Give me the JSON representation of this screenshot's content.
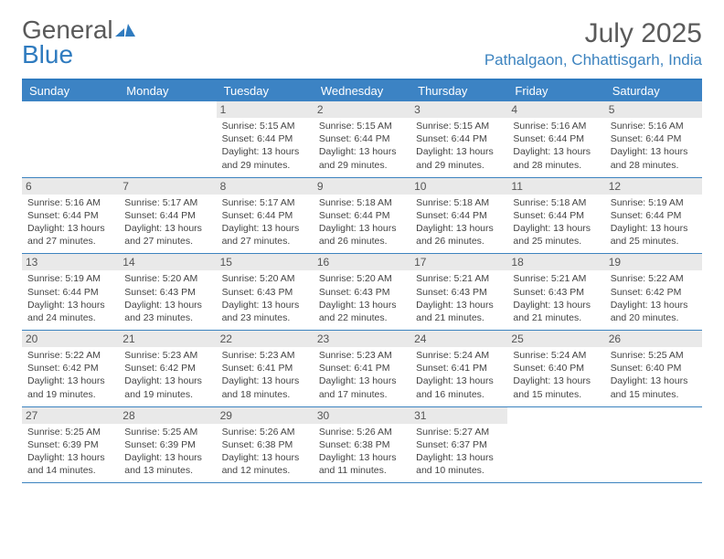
{
  "logo": {
    "part1": "General",
    "part2": "Blue"
  },
  "title": "July 2025",
  "location": "Pathalgaon, Chhattisgarh, India",
  "colors": {
    "header_bg": "#3c83c4",
    "border": "#2f7bbf",
    "daynum_bg": "#e9e9e9",
    "text": "#444444",
    "title_text": "#5a5a5a",
    "location_text": "#3c83bf"
  },
  "day_headers": [
    "Sunday",
    "Monday",
    "Tuesday",
    "Wednesday",
    "Thursday",
    "Friday",
    "Saturday"
  ],
  "weeks": [
    [
      null,
      null,
      {
        "n": "1",
        "sr": "5:15 AM",
        "ss": "6:44 PM",
        "dl": "13 hours and 29 minutes."
      },
      {
        "n": "2",
        "sr": "5:15 AM",
        "ss": "6:44 PM",
        "dl": "13 hours and 29 minutes."
      },
      {
        "n": "3",
        "sr": "5:15 AM",
        "ss": "6:44 PM",
        "dl": "13 hours and 29 minutes."
      },
      {
        "n": "4",
        "sr": "5:16 AM",
        "ss": "6:44 PM",
        "dl": "13 hours and 28 minutes."
      },
      {
        "n": "5",
        "sr": "5:16 AM",
        "ss": "6:44 PM",
        "dl": "13 hours and 28 minutes."
      }
    ],
    [
      {
        "n": "6",
        "sr": "5:16 AM",
        "ss": "6:44 PM",
        "dl": "13 hours and 27 minutes."
      },
      {
        "n": "7",
        "sr": "5:17 AM",
        "ss": "6:44 PM",
        "dl": "13 hours and 27 minutes."
      },
      {
        "n": "8",
        "sr": "5:17 AM",
        "ss": "6:44 PM",
        "dl": "13 hours and 27 minutes."
      },
      {
        "n": "9",
        "sr": "5:18 AM",
        "ss": "6:44 PM",
        "dl": "13 hours and 26 minutes."
      },
      {
        "n": "10",
        "sr": "5:18 AM",
        "ss": "6:44 PM",
        "dl": "13 hours and 26 minutes."
      },
      {
        "n": "11",
        "sr": "5:18 AM",
        "ss": "6:44 PM",
        "dl": "13 hours and 25 minutes."
      },
      {
        "n": "12",
        "sr": "5:19 AM",
        "ss": "6:44 PM",
        "dl": "13 hours and 25 minutes."
      }
    ],
    [
      {
        "n": "13",
        "sr": "5:19 AM",
        "ss": "6:44 PM",
        "dl": "13 hours and 24 minutes."
      },
      {
        "n": "14",
        "sr": "5:20 AM",
        "ss": "6:43 PM",
        "dl": "13 hours and 23 minutes."
      },
      {
        "n": "15",
        "sr": "5:20 AM",
        "ss": "6:43 PM",
        "dl": "13 hours and 23 minutes."
      },
      {
        "n": "16",
        "sr": "5:20 AM",
        "ss": "6:43 PM",
        "dl": "13 hours and 22 minutes."
      },
      {
        "n": "17",
        "sr": "5:21 AM",
        "ss": "6:43 PM",
        "dl": "13 hours and 21 minutes."
      },
      {
        "n": "18",
        "sr": "5:21 AM",
        "ss": "6:43 PM",
        "dl": "13 hours and 21 minutes."
      },
      {
        "n": "19",
        "sr": "5:22 AM",
        "ss": "6:42 PM",
        "dl": "13 hours and 20 minutes."
      }
    ],
    [
      {
        "n": "20",
        "sr": "5:22 AM",
        "ss": "6:42 PM",
        "dl": "13 hours and 19 minutes."
      },
      {
        "n": "21",
        "sr": "5:23 AM",
        "ss": "6:42 PM",
        "dl": "13 hours and 19 minutes."
      },
      {
        "n": "22",
        "sr": "5:23 AM",
        "ss": "6:41 PM",
        "dl": "13 hours and 18 minutes."
      },
      {
        "n": "23",
        "sr": "5:23 AM",
        "ss": "6:41 PM",
        "dl": "13 hours and 17 minutes."
      },
      {
        "n": "24",
        "sr": "5:24 AM",
        "ss": "6:41 PM",
        "dl": "13 hours and 16 minutes."
      },
      {
        "n": "25",
        "sr": "5:24 AM",
        "ss": "6:40 PM",
        "dl": "13 hours and 15 minutes."
      },
      {
        "n": "26",
        "sr": "5:25 AM",
        "ss": "6:40 PM",
        "dl": "13 hours and 15 minutes."
      }
    ],
    [
      {
        "n": "27",
        "sr": "5:25 AM",
        "ss": "6:39 PM",
        "dl": "13 hours and 14 minutes."
      },
      {
        "n": "28",
        "sr": "5:25 AM",
        "ss": "6:39 PM",
        "dl": "13 hours and 13 minutes."
      },
      {
        "n": "29",
        "sr": "5:26 AM",
        "ss": "6:38 PM",
        "dl": "13 hours and 12 minutes."
      },
      {
        "n": "30",
        "sr": "5:26 AM",
        "ss": "6:38 PM",
        "dl": "13 hours and 11 minutes."
      },
      {
        "n": "31",
        "sr": "5:27 AM",
        "ss": "6:37 PM",
        "dl": "13 hours and 10 minutes."
      },
      null,
      null
    ]
  ],
  "labels": {
    "sunrise": "Sunrise: ",
    "sunset": "Sunset: ",
    "daylight": "Daylight: "
  }
}
